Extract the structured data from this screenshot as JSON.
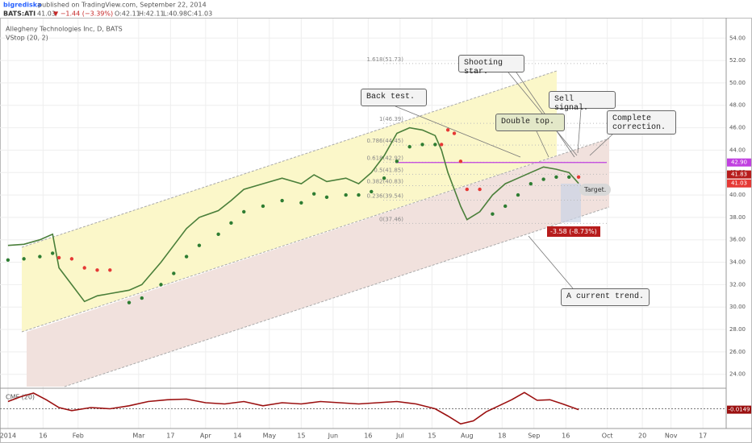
{
  "header": {
    "author": "bigrediska",
    "published": "published on TradingView.com, September 22, 2014",
    "symbol": "BATS:ATI",
    "last": "41.03",
    "change": "▼ −1.44 (−3.39%)",
    "open": "O:42.11",
    "high": "H:42.11",
    "low": "L:40.98",
    "close": "C:41.03"
  },
  "annotations": {
    "shooting_star": "Shooting star.",
    "back_test": "Back test.",
    "sell_signal": "Sell signal.",
    "double_top": "Double top.",
    "complete_correction": "Complete correction.",
    "target": "Target.",
    "current_trend": "A current trend.",
    "move": "-3.58 (-8.73%)"
  },
  "chart_data": [
    {
      "type": "line",
      "title": "Allegheny Technologies Inc, D, BATS",
      "color": "#4a7f3a",
      "x": [
        0,
        5,
        10,
        14,
        16,
        20,
        24,
        28,
        32,
        38,
        42,
        48,
        52,
        56,
        60,
        66,
        70,
        74,
        80,
        86,
        92,
        96,
        100,
        106,
        110,
        114,
        118,
        122,
        126,
        130,
        134,
        136,
        138,
        140,
        142,
        144,
        148,
        152,
        156,
        160,
        164,
        168,
        172,
        176,
        179
      ],
      "values": [
        35.5,
        35.6,
        36,
        36.5,
        33.5,
        32,
        30.5,
        31,
        31.2,
        31.5,
        32,
        34,
        35.5,
        37,
        38,
        38.6,
        39.5,
        40.5,
        41,
        41.5,
        41,
        41.8,
        41.2,
        41.5,
        41,
        42,
        43.5,
        45.5,
        46,
        45.8,
        45.3,
        44,
        42,
        40.5,
        39,
        37.8,
        38.5,
        40,
        41,
        41.5,
        42,
        42.5,
        42.3,
        42,
        41.03
      ],
      "indicator": {
        "name": "VStop (20, 2)",
        "up_color": "#2e7d32",
        "down_color": "#e53935",
        "values": [
          34.2,
          34.3,
          34.5,
          34.8,
          34.4,
          34.3,
          33.5,
          33.3,
          33.3,
          30.4,
          30.8,
          32,
          33,
          34.5,
          35.5,
          36.5,
          37.5,
          38.5,
          39,
          39.5,
          39.3,
          40.1,
          39.8,
          40,
          40,
          40.3,
          41.5,
          43,
          44.3,
          44.5,
          44.5,
          44.5,
          45.8,
          45.5,
          43,
          40.5,
          40.5,
          38.3,
          39,
          40,
          41,
          41.4,
          41.6,
          41.6,
          41.6
        ]
      },
      "xlim": [
        -2.5,
        225.3
      ],
      "ylim": [
        22.9,
        55.6
      ],
      "yticks": [
        {
          "value": 24,
          "label": "24.00"
        },
        {
          "value": 26,
          "label": "26.00"
        },
        {
          "value": 28,
          "label": "28.00"
        },
        {
          "value": 30,
          "label": "30.00"
        },
        {
          "value": 32,
          "label": "32.00"
        },
        {
          "value": 34,
          "label": "34.00"
        },
        {
          "value": 36,
          "label": "36.00"
        },
        {
          "value": 38,
          "label": "38.00"
        },
        {
          "value": 40,
          "label": "40.00"
        },
        {
          "value": 42,
          "label": "42.00"
        },
        {
          "value": 44,
          "label": "44.00"
        },
        {
          "value": 46,
          "label": "46.00"
        },
        {
          "value": 48,
          "label": "48.00"
        },
        {
          "value": 50,
          "label": "50.00"
        },
        {
          "value": 52,
          "label": "52.00"
        },
        {
          "value": 54,
          "label": "54.00"
        }
      ],
      "grid": true,
      "fib_levels": [
        {
          "value": 51.73,
          "label": "1.618(51.73)"
        },
        {
          "value": 46.39,
          "label": "1(46.39)"
        },
        {
          "value": 44.45,
          "label": "0.786(44.45)"
        },
        {
          "value": 42.92,
          "label": "0.618(42.92)"
        },
        {
          "value": 41.85,
          "label": "0.5(41.85)"
        },
        {
          "value": 40.83,
          "label": "0.382(40.83)"
        },
        {
          "value": 39.54,
          "label": "0.236(39.54)"
        },
        {
          "value": 37.46,
          "label": "0(37.46)"
        }
      ],
      "price_labels": [
        {
          "value": 42.9,
          "label": "42.90",
          "color": "#c040e0"
        },
        {
          "value": 41.83,
          "label": "41.83",
          "color": "#b71c1c"
        },
        {
          "value": 41.03,
          "label": "41.03",
          "color": "#e53935"
        }
      ]
    },
    {
      "type": "line",
      "title": "CMF (20)",
      "color": "#9b1010",
      "x": [
        0,
        4,
        8,
        12,
        16,
        20,
        26,
        32,
        38,
        44,
        50,
        56,
        62,
        68,
        74,
        80,
        86,
        92,
        98,
        104,
        110,
        116,
        122,
        128,
        134,
        138,
        142,
        146,
        150,
        154,
        158,
        162,
        166,
        170,
        174,
        179
      ],
      "values": [
        0.12,
        0.2,
        0.26,
        0.15,
        0.02,
        -0.03,
        0.02,
        0.0,
        0.05,
        0.12,
        0.15,
        0.16,
        0.1,
        0.08,
        0.12,
        0.05,
        0.1,
        0.08,
        0.12,
        0.1,
        0.08,
        0.1,
        0.12,
        0.08,
        0.0,
        -0.12,
        -0.25,
        -0.2,
        -0.05,
        0.05,
        0.15,
        0.27,
        0.14,
        0.15,
        0.08,
        -0.0149
      ],
      "xlim": [
        -2.5,
        225.3
      ],
      "ylim": [
        -0.3,
        0.3
      ],
      "xticks": [
        {
          "value": 0,
          "label": "2014"
        },
        {
          "value": 11,
          "label": "16"
        },
        {
          "value": 22,
          "label": "Feb"
        },
        {
          "value": 41,
          "label": "Mar"
        },
        {
          "value": 51,
          "label": "17"
        },
        {
          "value": 62,
          "label": "Apr"
        },
        {
          "value": 72,
          "label": "14"
        },
        {
          "value": 82,
          "label": "May"
        },
        {
          "value": 92,
          "label": "15"
        },
        {
          "value": 102,
          "label": "Jun"
        },
        {
          "value": 113,
          "label": "16"
        },
        {
          "value": 123,
          "label": "Jul"
        },
        {
          "value": 133,
          "label": "15"
        },
        {
          "value": 144,
          "label": "Aug"
        },
        {
          "value": 155,
          "label": "18"
        },
        {
          "value": 165,
          "label": "Sep"
        },
        {
          "value": 175,
          "label": "16"
        },
        {
          "value": 188,
          "label": "Oct"
        },
        {
          "value": 199,
          "label": "20"
        },
        {
          "value": 208,
          "label": "Nov"
        },
        {
          "value": 218,
          "label": "17"
        }
      ]
    }
  ]
}
